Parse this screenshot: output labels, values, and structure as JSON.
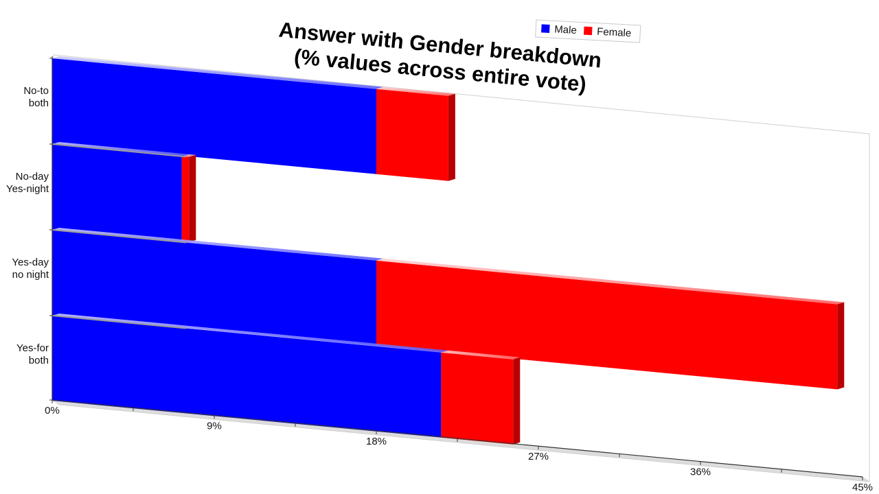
{
  "chart_data": {
    "type": "bar",
    "orientation": "horizontal",
    "stacked": true,
    "title_lines": [
      "Answer with Gender breakdown",
      "(% values across entire vote)"
    ],
    "categories": [
      "No-to both",
      "No-day Yes-night",
      "Yes-day no night",
      "Yes-for both"
    ],
    "category_label_lines": [
      [
        "No-to",
        "both"
      ],
      [
        "No-day",
        "Yes-night"
      ],
      [
        "Yes-day",
        "no night"
      ],
      [
        "Yes-for",
        "both"
      ]
    ],
    "series": [
      {
        "name": "Male",
        "color": "#0000ff",
        "values": [
          18,
          7.2,
          18,
          21.6
        ]
      },
      {
        "name": "Female",
        "color": "#ff0000",
        "values": [
          4,
          0.4,
          25.6,
          4
        ]
      }
    ],
    "x_ticks": [
      "0%",
      "9%",
      "18%",
      "27%",
      "36%",
      "45%"
    ],
    "xlim": [
      0,
      45
    ],
    "legend_position": "top-right",
    "grid": false
  }
}
